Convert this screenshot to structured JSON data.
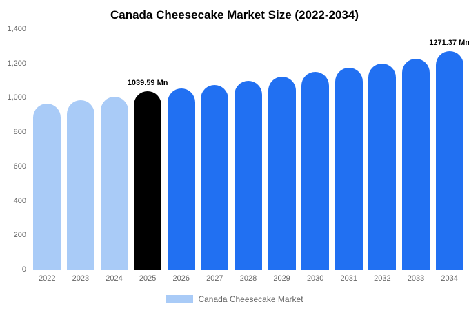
{
  "chart_data": {
    "type": "bar",
    "title": "Canada Cheesecake Market Size (2022-2034)",
    "categories": [
      "2022",
      "2023",
      "2024",
      "2025",
      "2026",
      "2027",
      "2028",
      "2029",
      "2030",
      "2031",
      "2032",
      "2033",
      "2034"
    ],
    "values": [
      965,
      987,
      1004,
      1039.59,
      1056,
      1076,
      1098,
      1123,
      1149,
      1176,
      1200,
      1228,
      1271.37
    ],
    "bar_colors": [
      "#a9cbf7",
      "#a9cbf7",
      "#a9cbf7",
      "#000000",
      "#2170f2",
      "#2170f2",
      "#2170f2",
      "#2170f2",
      "#2170f2",
      "#2170f2",
      "#2170f2",
      "#2170f2",
      "#2170f2"
    ],
    "annotations": [
      {
        "index": 3,
        "text": "1039.59 Mn"
      },
      {
        "index": 12,
        "text": "1271.37 Mn"
      }
    ],
    "ylim": [
      0,
      1400
    ],
    "ytick_values": [
      0,
      200,
      400,
      600,
      800,
      1000,
      1200,
      1400
    ],
    "ytick_labels": [
      "0",
      "200",
      "400",
      "600",
      "800",
      "1,000",
      "1,200",
      "1,400"
    ],
    "grid": false,
    "legend_position": "bottom"
  },
  "legend": {
    "label": "Canada Cheesecake Market",
    "swatch_color": "#a9cbf7"
  },
  "colors": {
    "historical": "#a9cbf7",
    "base_year": "#000000",
    "forecast": "#2170f2",
    "axis_text": "#666666"
  }
}
